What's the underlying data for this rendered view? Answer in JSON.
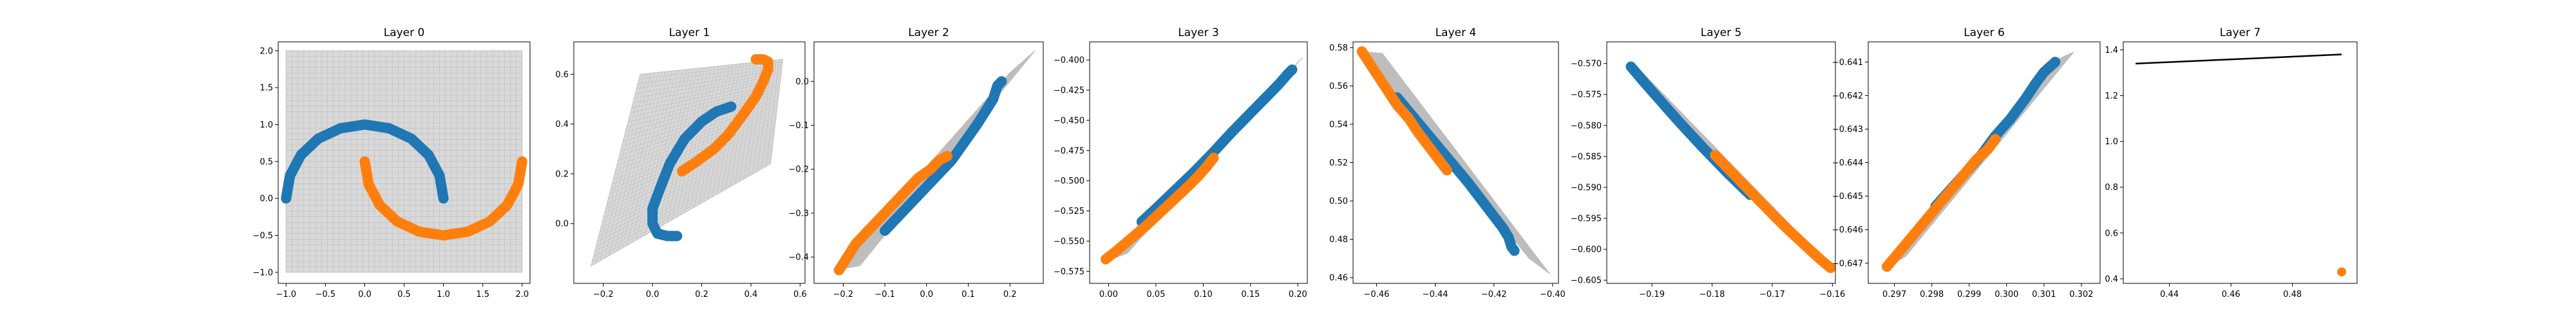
{
  "chart_data": [
    {
      "title": "Layer 0",
      "type": "scatter",
      "xlim": [
        -1.1,
        2.1
      ],
      "ylim": [
        -1.15,
        2.12
      ],
      "xticks": [
        -1.0,
        -0.5,
        0.0,
        0.5,
        1.0,
        1.5,
        2.0
      ],
      "yticks": [
        -1.0,
        -0.5,
        0.0,
        0.5,
        1.0,
        1.5,
        2.0
      ],
      "xtick_labels": [
        "−1.0",
        "−0.5",
        "0.0",
        "0.5",
        "1.0",
        "1.5",
        "2.0"
      ],
      "ytick_labels": [
        "−1.0",
        "−0.5",
        "0.0",
        "0.5",
        "1.0",
        "1.5",
        "2.0"
      ],
      "grid": true,
      "grid_corners": [
        [
          -1.0,
          -1.0
        ],
        [
          2.0,
          -1.0
        ],
        [
          2.0,
          2.0
        ],
        [
          -1.0,
          2.0
        ]
      ],
      "series": [
        {
          "color": "#1f77b4",
          "points": [
            [
              -1.0,
              0.0
            ],
            [
              -0.95,
              0.31
            ],
            [
              -0.81,
              0.59
            ],
            [
              -0.59,
              0.81
            ],
            [
              -0.31,
              0.95
            ],
            [
              0.0,
              1.0
            ],
            [
              0.31,
              0.95
            ],
            [
              0.59,
              0.81
            ],
            [
              0.81,
              0.59
            ],
            [
              0.95,
              0.31
            ],
            [
              1.0,
              0.0
            ]
          ]
        },
        {
          "color": "#ff7f0e",
          "points": [
            [
              0.0,
              0.5
            ],
            [
              0.05,
              0.19
            ],
            [
              0.19,
              -0.09
            ],
            [
              0.41,
              -0.31
            ],
            [
              0.69,
              -0.45
            ],
            [
              1.0,
              -0.5
            ],
            [
              1.31,
              -0.45
            ],
            [
              1.59,
              -0.31
            ],
            [
              1.81,
              -0.09
            ],
            [
              1.95,
              0.19
            ],
            [
              2.0,
              0.5
            ]
          ]
        }
      ]
    },
    {
      "title": "Layer 1",
      "type": "scatter",
      "xlim": [
        -0.32,
        0.62
      ],
      "ylim": [
        -0.24,
        0.73
      ],
      "xticks": [
        -0.2,
        0.0,
        0.2,
        0.4,
        0.6
      ],
      "yticks": [
        0.0,
        0.2,
        0.4,
        0.6
      ],
      "xtick_labels": [
        "−0.2",
        "0.0",
        "0.2",
        "0.4",
        "0.6"
      ],
      "ytick_labels": [
        "0.0",
        "0.2",
        "0.4",
        "0.6"
      ],
      "grid": true,
      "grid_corners": [
        [
          -0.25,
          -0.17
        ],
        [
          0.48,
          0.24
        ],
        [
          0.53,
          0.66
        ],
        [
          -0.05,
          0.6
        ]
      ],
      "series": [
        {
          "color": "#1f77b4",
          "points": [
            [
              0.32,
              0.47
            ],
            [
              0.26,
              0.45
            ],
            [
              0.2,
              0.41
            ],
            [
              0.13,
              0.34
            ],
            [
              0.07,
              0.24
            ],
            [
              0.03,
              0.14
            ],
            [
              0.0,
              0.06
            ],
            [
              0.0,
              0.0
            ],
            [
              0.02,
              -0.04
            ],
            [
              0.06,
              -0.05
            ],
            [
              0.1,
              -0.05
            ]
          ]
        },
        {
          "color": "#ff7f0e",
          "points": [
            [
              0.12,
              0.21
            ],
            [
              0.18,
              0.25
            ],
            [
              0.25,
              0.3
            ],
            [
              0.31,
              0.36
            ],
            [
              0.37,
              0.44
            ],
            [
              0.42,
              0.51
            ],
            [
              0.45,
              0.57
            ],
            [
              0.47,
              0.62
            ],
            [
              0.47,
              0.65
            ],
            [
              0.45,
              0.66
            ],
            [
              0.42,
              0.66
            ]
          ]
        }
      ]
    },
    {
      "title": "Layer 2",
      "type": "scatter",
      "xlim": [
        -0.27,
        0.28
      ],
      "ylim": [
        -0.46,
        0.09
      ],
      "xticks": [
        -0.2,
        -0.1,
        0.0,
        0.1,
        0.2
      ],
      "yticks": [
        -0.4,
        -0.3,
        -0.2,
        -0.1,
        0.0
      ],
      "xtick_labels": [
        "−0.2",
        "−0.1",
        "0.0",
        "0.1",
        "0.2"
      ],
      "ytick_labels": [
        "−0.4",
        "−0.3",
        "−0.2",
        "−0.1",
        "0.0"
      ],
      "grid": true,
      "grid_corners": [
        [
          -0.22,
          -0.43
        ],
        [
          -0.16,
          -0.42
        ],
        [
          0.26,
          0.07
        ],
        [
          0.2,
          0.02
        ]
      ],
      "series": [
        {
          "color": "#1f77b4",
          "points": [
            [
              -0.1,
              -0.34
            ],
            [
              -0.06,
              -0.3
            ],
            [
              -0.02,
              -0.26
            ],
            [
              0.02,
              -0.22
            ],
            [
              0.06,
              -0.18
            ],
            [
              0.09,
              -0.14
            ],
            [
              0.12,
              -0.1
            ],
            [
              0.14,
              -0.07
            ],
            [
              0.16,
              -0.04
            ],
            [
              0.17,
              -0.01
            ],
            [
              0.18,
              0.0
            ]
          ]
        },
        {
          "color": "#ff7f0e",
          "points": [
            [
              -0.21,
              -0.43
            ],
            [
              -0.19,
              -0.4
            ],
            [
              -0.17,
              -0.37
            ],
            [
              -0.14,
              -0.34
            ],
            [
              -0.11,
              -0.31
            ],
            [
              -0.08,
              -0.28
            ],
            [
              -0.05,
              -0.25
            ],
            [
              -0.02,
              -0.22
            ],
            [
              0.01,
              -0.2
            ],
            [
              0.03,
              -0.18
            ],
            [
              0.05,
              -0.17
            ]
          ]
        }
      ]
    },
    {
      "title": "Layer 3",
      "type": "scatter",
      "xlim": [
        -0.02,
        0.21
      ],
      "ylim": [
        -0.585,
        -0.385
      ],
      "xticks": [
        0.0,
        0.05,
        0.1,
        0.15,
        0.2
      ],
      "yticks": [
        -0.575,
        -0.55,
        -0.525,
        -0.5,
        -0.475,
        -0.45,
        -0.425,
        -0.4
      ],
      "xtick_labels": [
        "0.00",
        "0.05",
        "0.10",
        "0.15",
        "0.20"
      ],
      "ytick_labels": [
        "−0.575",
        "−0.550",
        "−0.525",
        "−0.500",
        "−0.475",
        "−0.450",
        "−0.425",
        "−0.400"
      ],
      "grid": true,
      "grid_corners": [
        [
          0.0,
          -0.566
        ],
        [
          0.02,
          -0.56
        ],
        [
          0.205,
          -0.398
        ],
        [
          0.19,
          -0.41
        ]
      ],
      "series": [
        {
          "color": "#1f77b4",
          "points": [
            [
              0.035,
              -0.534
            ],
            [
              0.05,
              -0.523
            ],
            [
              0.07,
              -0.508
            ],
            [
              0.09,
              -0.493
            ],
            [
              0.11,
              -0.477
            ],
            [
              0.13,
              -0.46
            ],
            [
              0.15,
              -0.444
            ],
            [
              0.165,
              -0.432
            ],
            [
              0.18,
              -0.42
            ],
            [
              0.19,
              -0.411
            ],
            [
              0.194,
              -0.408
            ]
          ]
        },
        {
          "color": "#ff7f0e",
          "points": [
            [
              -0.003,
              -0.565
            ],
            [
              0.01,
              -0.557
            ],
            [
              0.025,
              -0.547
            ],
            [
              0.04,
              -0.537
            ],
            [
              0.055,
              -0.526
            ],
            [
              0.07,
              -0.515
            ],
            [
              0.085,
              -0.504
            ],
            [
              0.095,
              -0.496
            ],
            [
              0.103,
              -0.489
            ],
            [
              0.108,
              -0.484
            ],
            [
              0.111,
              -0.481
            ]
          ]
        }
      ]
    },
    {
      "title": "Layer 4",
      "type": "scatter",
      "xlim": [
        -0.468,
        -0.398
      ],
      "ylim": [
        0.457,
        0.583
      ],
      "xticks": [
        -0.46,
        -0.44,
        -0.42,
        -0.4
      ],
      "yticks": [
        0.46,
        0.48,
        0.5,
        0.52,
        0.54,
        0.56,
        0.58
      ],
      "xtick_labels": [
        "−0.46",
        "−0.44",
        "−0.42",
        "−0.40"
      ],
      "ytick_labels": [
        "0.46",
        "0.48",
        "0.50",
        "0.52",
        "0.54",
        "0.56",
        "0.58"
      ],
      "grid": true,
      "grid_corners": [
        [
          -0.465,
          0.578
        ],
        [
          -0.458,
          0.577
        ],
        [
          -0.401,
          0.462
        ],
        [
          -0.408,
          0.47
        ]
      ],
      "series": [
        {
          "color": "#1f77b4",
          "points": [
            [
              -0.453,
              0.554
            ],
            [
              -0.447,
              0.543
            ],
            [
              -0.441,
              0.532
            ],
            [
              -0.435,
              0.521
            ],
            [
              -0.429,
              0.51
            ],
            [
              -0.424,
              0.5
            ],
            [
              -0.42,
              0.492
            ],
            [
              -0.417,
              0.486
            ],
            [
              -0.415,
              0.481
            ],
            [
              -0.414,
              0.476
            ],
            [
              -0.413,
              0.474
            ]
          ]
        },
        {
          "color": "#ff7f0e",
          "points": [
            [
              -0.465,
              0.578
            ],
            [
              -0.462,
              0.571
            ],
            [
              -0.459,
              0.564
            ],
            [
              -0.456,
              0.557
            ],
            [
              -0.453,
              0.55
            ],
            [
              -0.449,
              0.543
            ],
            [
              -0.446,
              0.536
            ],
            [
              -0.443,
              0.53
            ],
            [
              -0.44,
              0.524
            ],
            [
              -0.438,
              0.52
            ],
            [
              -0.436,
              0.516
            ]
          ]
        }
      ]
    },
    {
      "title": "Layer 5",
      "type": "scatter",
      "xlim": [
        -0.1975,
        -0.1595
      ],
      "ylim": [
        -0.6055,
        -0.5665
      ],
      "xticks": [
        -0.19,
        -0.18,
        -0.17,
        -0.16
      ],
      "yticks": [
        -0.57,
        -0.575,
        -0.58,
        -0.585,
        -0.59,
        -0.595,
        -0.6,
        -0.605
      ],
      "xtick_labels": [
        "−0.19",
        "−0.18",
        "−0.17",
        "−0.16"
      ],
      "ytick_labels": [
        "−0.570",
        "−0.575",
        "−0.580",
        "−0.585",
        "−0.590",
        "−0.595",
        "−0.600",
        "−0.605"
      ],
      "grid": true,
      "grid_corners": [
        [
          -0.1935,
          -0.5708
        ],
        [
          -0.1928,
          -0.5702
        ],
        [
          -0.1598,
          -0.6032
        ],
        [
          -0.1605,
          -0.6035
        ]
      ],
      "series": [
        {
          "color": "#1f77b4",
          "points": [
            [
              -0.1935,
              -0.5705
            ],
            [
              -0.1915,
              -0.5728
            ],
            [
              -0.1895,
              -0.575
            ],
            [
              -0.1875,
              -0.5772
            ],
            [
              -0.1855,
              -0.5794
            ],
            [
              -0.1835,
              -0.5815
            ],
            [
              -0.1815,
              -0.5836
            ],
            [
              -0.1795,
              -0.5856
            ],
            [
              -0.1775,
              -0.5876
            ],
            [
              -0.1755,
              -0.5895
            ],
            [
              -0.1737,
              -0.5912
            ]
          ]
        },
        {
          "color": "#ff7f0e",
          "points": [
            [
              -0.1795,
              -0.5848
            ],
            [
              -0.1775,
              -0.5868
            ],
            [
              -0.1755,
              -0.5888
            ],
            [
              -0.1735,
              -0.5908
            ],
            [
              -0.1715,
              -0.5928
            ],
            [
              -0.1695,
              -0.5948
            ],
            [
              -0.1675,
              -0.5967
            ],
            [
              -0.1655,
              -0.5985
            ],
            [
              -0.1635,
              -0.6003
            ],
            [
              -0.1618,
              -0.6018
            ],
            [
              -0.1603,
              -0.603
            ]
          ]
        }
      ]
    },
    {
      "title": "Layer 6",
      "type": "scatter",
      "xlim": [
        0.2963,
        0.3025
      ],
      "ylim": [
        -0.6476,
        -0.6404
      ],
      "xticks": [
        0.297,
        0.298,
        0.299,
        0.3,
        0.301,
        0.302
      ],
      "yticks": [
        -0.641,
        -0.642,
        -0.643,
        -0.644,
        -0.645,
        -0.646,
        -0.647
      ],
      "xtick_labels": [
        "0.297",
        "0.298",
        "0.299",
        "0.300",
        "0.301",
        "0.302"
      ],
      "ytick_labels": [
        "−0.641",
        "−0.642",
        "−0.643",
        "−0.644",
        "−0.645",
        "−0.646",
        "−0.647"
      ],
      "grid": true,
      "grid_corners": [
        [
          0.2967,
          -0.6472
        ],
        [
          0.2973,
          -0.6468
        ],
        [
          0.3018,
          -0.6407
        ],
        [
          0.3012,
          -0.641
        ]
      ],
      "series": [
        {
          "color": "#1f77b4",
          "points": [
            [
              0.2981,
              -0.6453
            ],
            [
              0.2985,
              -0.6448
            ],
            [
              0.2989,
              -0.6443
            ],
            [
              0.2993,
              -0.6438
            ],
            [
              0.2997,
              -0.6432
            ],
            [
              0.3001,
              -0.6427
            ],
            [
              0.3005,
              -0.6421
            ],
            [
              0.3008,
              -0.6416
            ],
            [
              0.301,
              -0.6413
            ],
            [
              0.3012,
              -0.6411
            ],
            [
              0.3013,
              -0.641
            ]
          ]
        },
        {
          "color": "#ff7f0e",
          "points": [
            [
              0.2968,
              -0.6471
            ],
            [
              0.2971,
              -0.6467
            ],
            [
              0.2974,
              -0.6463
            ],
            [
              0.2977,
              -0.6459
            ],
            [
              0.298,
              -0.6455
            ],
            [
              0.2983,
              -0.6451
            ],
            [
              0.2986,
              -0.6447
            ],
            [
              0.2989,
              -0.6443
            ],
            [
              0.2992,
              -0.6439
            ],
            [
              0.2995,
              -0.6436
            ],
            [
              0.2997,
              -0.6433
            ]
          ]
        }
      ]
    },
    {
      "title": "Layer 7",
      "type": "line",
      "xlim": [
        0.425,
        0.501
      ],
      "ylim": [
        0.38,
        1.435
      ],
      "xticks": [
        0.44,
        0.46,
        0.48
      ],
      "yticks": [
        0.4,
        0.6,
        0.8,
        1.0,
        1.2,
        1.4
      ],
      "xtick_labels": [
        "0.44",
        "0.46",
        "0.48"
      ],
      "ytick_labels": [
        "0.4",
        "0.6",
        "0.8",
        "1.0",
        "1.2",
        "1.4"
      ],
      "grid": false,
      "line": {
        "color": "#000000",
        "points": [
          [
            0.429,
            1.34
          ],
          [
            0.496,
            1.38
          ]
        ]
      },
      "series": [
        {
          "color": "#ff7f0e",
          "points": [
            [
              0.496,
              0.43
            ]
          ]
        }
      ]
    }
  ]
}
